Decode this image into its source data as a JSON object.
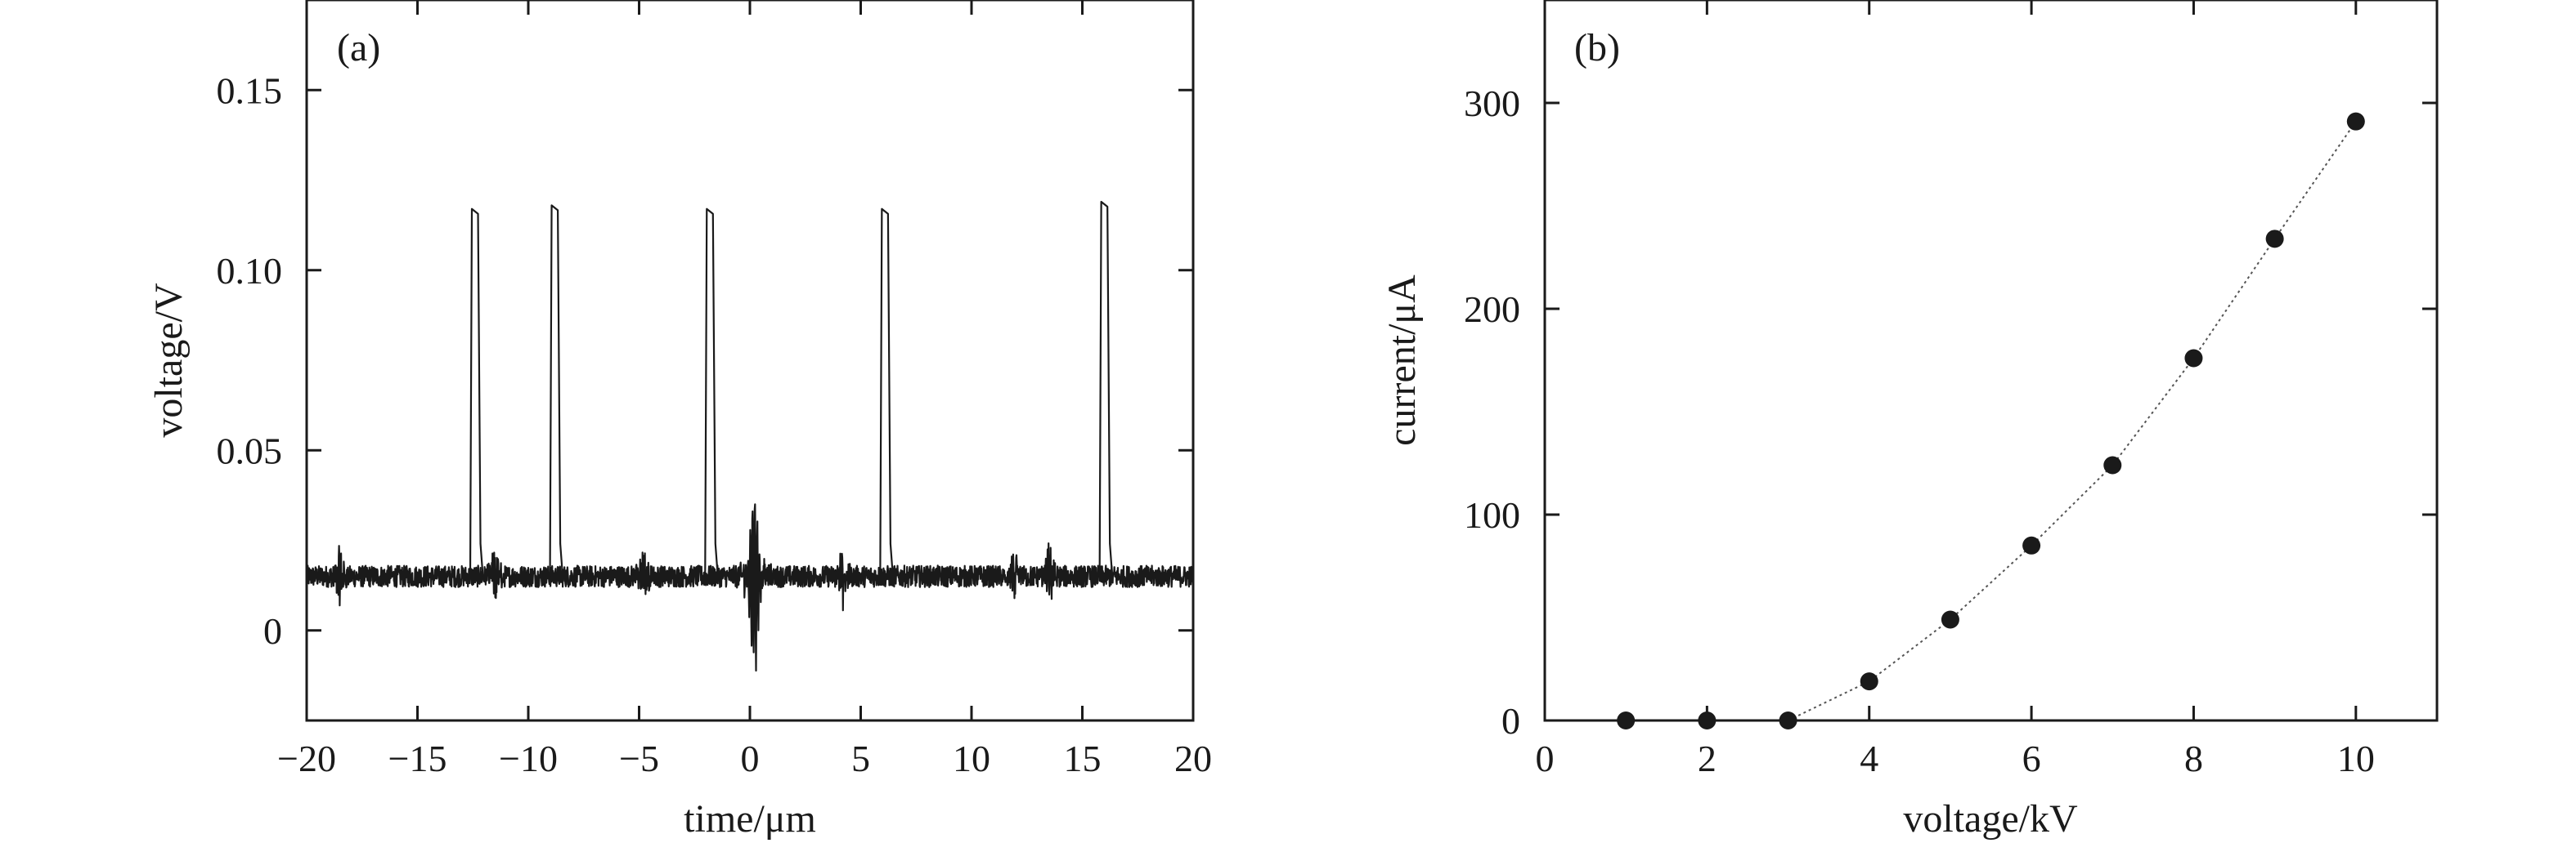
{
  "chart_data": [
    {
      "panel_label": "(a)",
      "type": "line",
      "xlabel": "time/μm",
      "ylabel": "voltage/V",
      "xlim": [
        -20,
        20
      ],
      "ylim": [
        -0.025,
        0.175
      ],
      "x_ticks": [
        -20,
        -15,
        -10,
        -5,
        0,
        5,
        10,
        15,
        20
      ],
      "x_tick_labels": [
        "−20",
        "−15",
        "−10",
        "−5",
        "0",
        "5",
        "10",
        "15",
        "20"
      ],
      "y_ticks": [
        0,
        0.05,
        0.1,
        0.15
      ],
      "y_tick_labels": [
        "0",
        "0.05",
        "0.10",
        "0.15"
      ],
      "baseline_voltage": 0.015,
      "pulses": [
        {
          "time": -12.4,
          "peak": 0.117
        },
        {
          "time": -8.8,
          "peak": 0.118
        },
        {
          "time": -1.8,
          "peak": 0.117
        },
        {
          "time": 6.1,
          "peak": 0.117
        },
        {
          "time": 16.0,
          "peak": 0.119
        }
      ],
      "oscillation": {
        "time": 0.2,
        "max": 0.039,
        "min": -0.007
      },
      "grid": false
    },
    {
      "panel_label": "(b)",
      "type": "scatter",
      "xlabel": "voltage/kV",
      "ylabel": "current/μA",
      "xlim": [
        0,
        11
      ],
      "ylim": [
        0,
        350
      ],
      "x_ticks": [
        0,
        2,
        4,
        6,
        8,
        10
      ],
      "x_tick_labels": [
        "0",
        "2",
        "4",
        "6",
        "8",
        "10"
      ],
      "y_ticks": [
        0,
        100,
        200,
        300
      ],
      "y_tick_labels": [
        "0",
        "100",
        "200",
        "300"
      ],
      "series": [
        {
          "x": [
            1,
            2,
            3,
            4,
            5,
            6,
            7,
            8,
            9,
            10
          ],
          "y": [
            0,
            0,
            0,
            19,
            49,
            85,
            124,
            176,
            234,
            291
          ]
        }
      ],
      "grid": false
    }
  ]
}
